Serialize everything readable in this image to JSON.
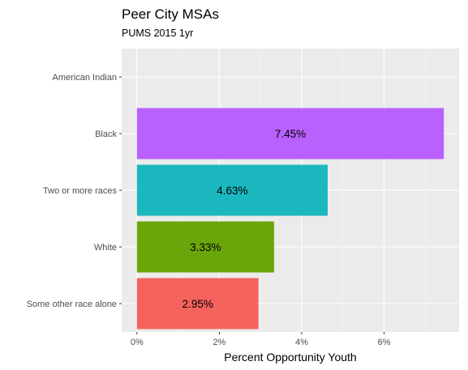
{
  "chart_data": {
    "type": "bar",
    "orientation": "horizontal",
    "title": "Peer City MSAs",
    "subtitle": "PUMS 2015 1yr",
    "xlabel": "Percent Opportunity Youth",
    "ylabel": "",
    "xlim": [
      -0.0037,
      0.0782
    ],
    "x_ticks": [
      0,
      0.02,
      0.04,
      0.06
    ],
    "x_tick_labels": [
      "0%",
      "2%",
      "4%",
      "6%"
    ],
    "grid": true,
    "legend": "none",
    "panel_color": "#ebebeb",
    "categories": [
      "American Indian",
      "Black",
      "Two or more races",
      "White",
      "Some other race alone"
    ],
    "values": [
      0,
      0.0745,
      0.0463,
      0.0333,
      0.0295
    ],
    "labels": [
      "",
      "7.45%",
      "4.63%",
      "3.33%",
      "2.95%"
    ],
    "colors": [
      "#e76bf3",
      "#b861fc",
      "#1bb7bf",
      "#6aa60a",
      "#f5635d"
    ]
  }
}
